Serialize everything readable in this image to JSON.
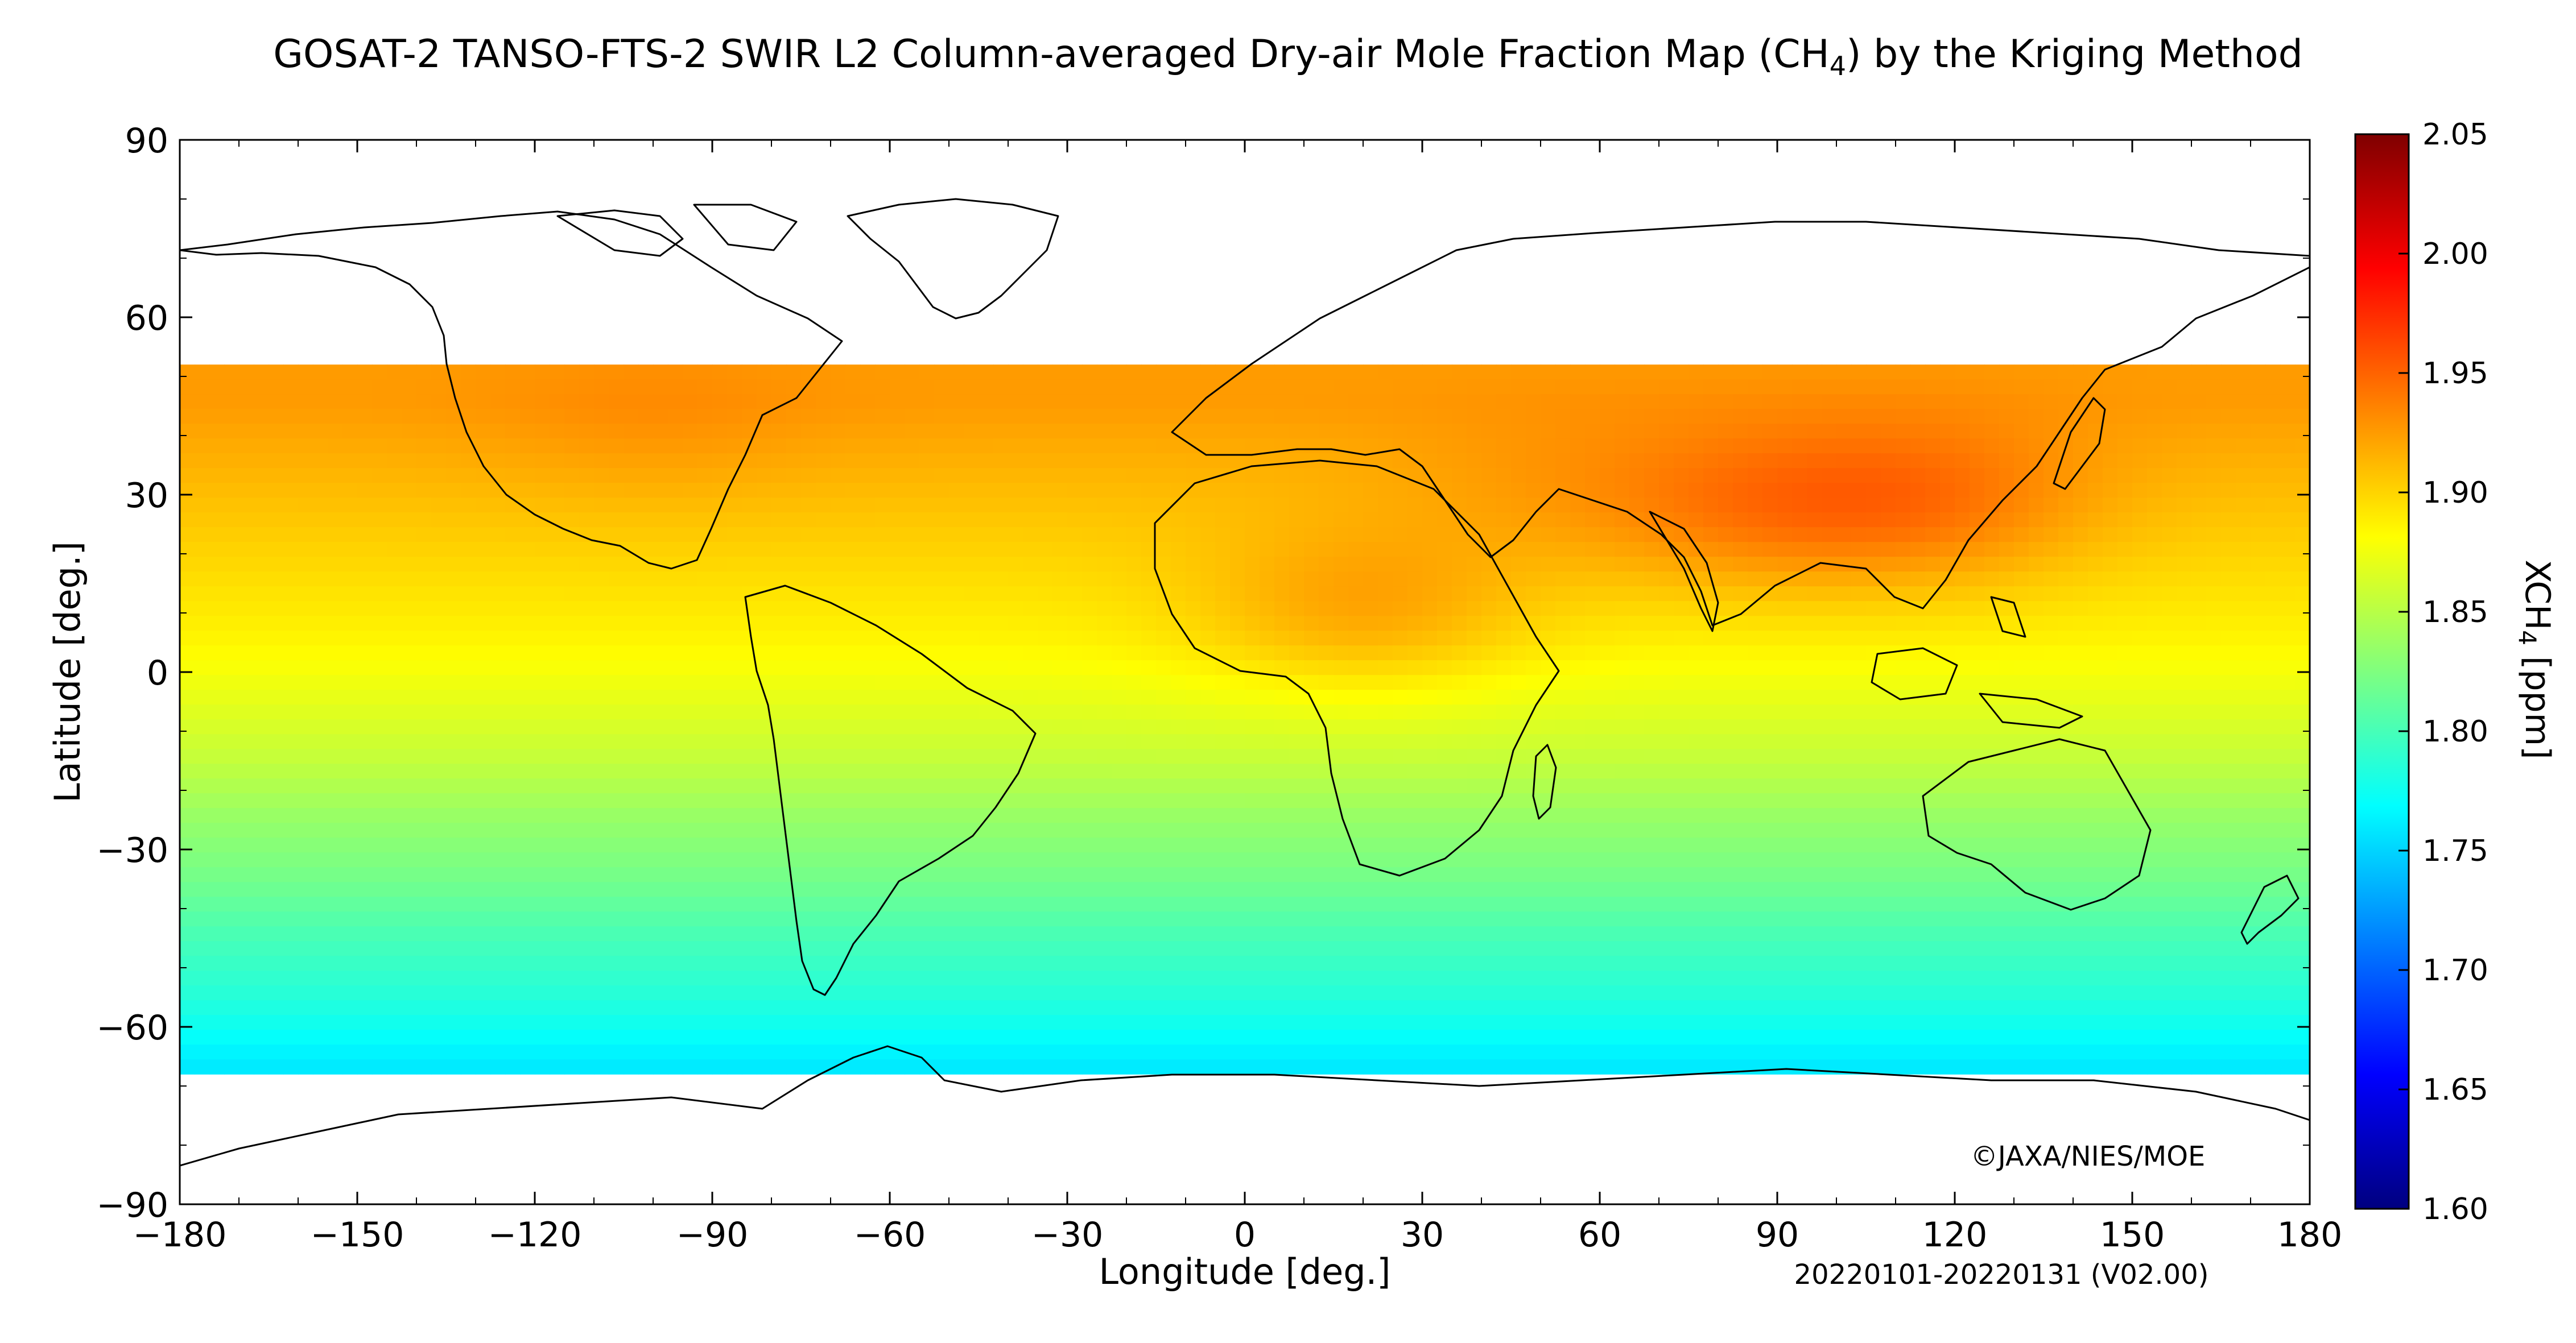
{
  "chart_data": {
    "type": "heatmap",
    "title_main": "GOSAT-2 TANSO-FTS-2 SWIR L2 Column-averaged Dry-air Mole Fraction Map (CH",
    "title_sub": "4",
    "title_tail": ") by the Kriging Method",
    "xlabel": "Longitude [deg.]",
    "ylabel": "Latitude [deg.]",
    "xlim": [
      -180,
      180
    ],
    "ylim": [
      -90,
      90
    ],
    "xticks": [
      -180,
      -150,
      -120,
      -90,
      -60,
      -30,
      0,
      30,
      60,
      90,
      120,
      150,
      180
    ],
    "yticks": [
      90,
      60,
      30,
      0,
      -30,
      -60,
      -90
    ],
    "xtick_labels": [
      "−180",
      "−150",
      "−120",
      "−90",
      "−60",
      "−30",
      "0",
      "30",
      "60",
      "90",
      "120",
      "150",
      "180"
    ],
    "ytick_labels": [
      "90",
      "60",
      "30",
      "0",
      "−30",
      "−60",
      "−90"
    ],
    "colorbar": {
      "label_main": "XCH",
      "label_sub": "4",
      "label_tail": " [ppm]",
      "min": 1.6,
      "max": 2.05,
      "ticks": [
        2.05,
        2.0,
        1.95,
        1.9,
        1.85,
        1.8,
        1.75,
        1.7,
        1.65,
        1.6
      ],
      "tick_labels": [
        "2.05",
        "2.00",
        "1.95",
        "1.90",
        "1.85",
        "1.80",
        "1.75",
        "1.70",
        "1.65",
        "1.60"
      ],
      "colormap": "jet",
      "colors": [
        "#00007f",
        "#0000ff",
        "#007fff",
        "#00ffff",
        "#7fff7f",
        "#ffff00",
        "#ff7f00",
        "#ff0000",
        "#7f0000"
      ]
    },
    "grid_resolution_deg": 2.5,
    "data_lat_range": [
      -66,
      52
    ],
    "latitude_profile_ppm": {
      "lat": [
        52,
        45,
        35,
        25,
        15,
        5,
        -5,
        -15,
        -25,
        -35,
        -45,
        -55,
        -60,
        -66
      ],
      "xch4": [
        1.925,
        1.925,
        1.915,
        1.905,
        1.895,
        1.885,
        1.87,
        1.855,
        1.835,
        1.82,
        1.8,
        1.785,
        1.775,
        1.76
      ]
    },
    "regional_enhancements": [
      {
        "lon": 115,
        "lat": 28,
        "xch4": 1.94
      },
      {
        "lon": 85,
        "lat": 27,
        "xch4": 1.935
      },
      {
        "lon": 20,
        "lat": 10,
        "xch4": 1.92
      },
      {
        "lon": 50,
        "lat": 30,
        "xch4": 1.92
      },
      {
        "lon": -100,
        "lat": 42,
        "xch4": 1.93
      }
    ],
    "copyright": "©JAXA/NIES/MOE",
    "period_note": "20220101-20220131 (V02.00)"
  }
}
